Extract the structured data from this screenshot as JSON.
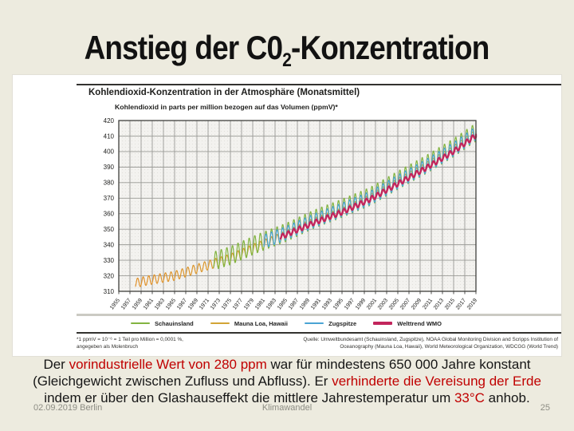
{
  "slide": {
    "title": {
      "prefix": "Anstieg der C0",
      "subscript": "2",
      "suffix": "-Konzentration"
    },
    "body_lines": [
      {
        "segments": [
          {
            "text": "Der ",
            "style": "normal"
          },
          {
            "text": "vorindustrielle Wert von 280 ppm",
            "style": "red"
          },
          {
            "text": " war für mindestens 650 000 Jahre konstant",
            "style": "normal"
          }
        ]
      },
      {
        "segments": [
          {
            "text": "(Gleichgewicht zwischen Zufluss und Abfluss). Er ",
            "style": "normal"
          },
          {
            "text": "verhinderte die Vereisung der Erde",
            "style": "red"
          }
        ]
      },
      {
        "segments": [
          {
            "text": "indem er über den Glashauseffekt die mittlere Jahrestemperatur um ",
            "style": "normal"
          },
          {
            "text": "33°C",
            "style": "red"
          },
          {
            "text": " anhob.",
            "style": "normal"
          }
        ]
      }
    ],
    "accent_red": "#C00000",
    "background_color": "#EDEBDF",
    "footer": {
      "date_location": "02.09.2019 Berlin",
      "topic": "Klimawandel",
      "page_number": "25"
    }
  },
  "chart_data": {
    "type": "line",
    "title": "Kohlendioxid-Konzentration in der Atmosphäre (Monatsmittel)",
    "subtitle": "Kohlendioxid in parts per million bezogen auf das Volumen (ppmV)*",
    "xlabel": "",
    "ylabel": "ppmV",
    "xlim": [
      1955,
      2019
    ],
    "ylim": [
      310,
      420
    ],
    "xtick_step": 2,
    "ytick_step": 10,
    "grid": true,
    "legend_position": "bottom",
    "plot_background": "#F3F2EF",
    "grid_color": "#9A9A96",
    "frame_color": "#3F3F3C",
    "series": [
      {
        "name": "Mauna Loa, Hawaii",
        "color": "#D2A435",
        "gradient": [
          "#E2902C",
          "#C6B134"
        ],
        "width": 1.2,
        "seasonal_amplitude": 3.0,
        "anchors": [
          [
            1958,
            315.3
          ],
          [
            1960,
            316.9
          ],
          [
            1965,
            320.0
          ],
          [
            1970,
            325.7
          ],
          [
            1975,
            331.1
          ],
          [
            1980,
            338.8
          ],
          [
            1985,
            346.1
          ],
          [
            1990,
            354.4
          ],
          [
            1995,
            360.8
          ],
          [
            2000,
            369.5
          ],
          [
            2005,
            379.8
          ],
          [
            2010,
            389.9
          ],
          [
            2015,
            400.8
          ],
          [
            2019,
            411.4
          ]
        ]
      },
      {
        "name": "Schauinsland",
        "color": "#82B440",
        "width": 1.2,
        "seasonal_amplitude": 6.0,
        "anchors": [
          [
            1972,
            329.5
          ],
          [
            1975,
            333.0
          ],
          [
            1980,
            341.0
          ],
          [
            1985,
            348.0
          ],
          [
            1990,
            356.5
          ],
          [
            1995,
            363.5
          ],
          [
            2000,
            371.0
          ],
          [
            2005,
            381.5
          ],
          [
            2010,
            391.5
          ],
          [
            2015,
            402.5
          ],
          [
            2019,
            412.5
          ]
        ]
      },
      {
        "name": "Zugspitze",
        "color": "#4AA3D4",
        "width": 1.2,
        "seasonal_amplitude": 4.5,
        "anchors": [
          [
            1981,
            342.0
          ],
          [
            1985,
            347.5
          ],
          [
            1990,
            355.5
          ],
          [
            1995,
            362.5
          ],
          [
            2000,
            370.0
          ],
          [
            2005,
            380.5
          ],
          [
            2010,
            390.5
          ],
          [
            2015,
            401.5
          ],
          [
            2019,
            411.8
          ]
        ]
      },
      {
        "name": "Welttrend WMO",
        "color": "#C2255C",
        "width": 2.4,
        "seasonal_amplitude": 1.6,
        "anchors": [
          [
            1984,
            345.0
          ],
          [
            1990,
            354.2
          ],
          [
            1995,
            361.0
          ],
          [
            2000,
            369.2
          ],
          [
            2005,
            379.3
          ],
          [
            2010,
            389.3
          ],
          [
            2015,
            400.1
          ],
          [
            2019,
            410.5
          ]
        ]
      }
    ],
    "legend_order": [
      "Schauinsland",
      "Mauna Loa, Hawaii",
      "Zugspitze",
      "Welttrend WMO"
    ],
    "footnote": "*1 ppmV = 10⁻⁶ = 1 Teil pro Million = 0,0001 %,\nangegeben als Molenbruch",
    "source": "Quelle: Umweltbundesamt (Schauinsland, Zugspitze), NOAA Global Monitoring Division and Scripps Institution of Oceanography (Mauna Loa, Hawaii), World Meteorological Organization, WDCGG (World Trend)"
  }
}
